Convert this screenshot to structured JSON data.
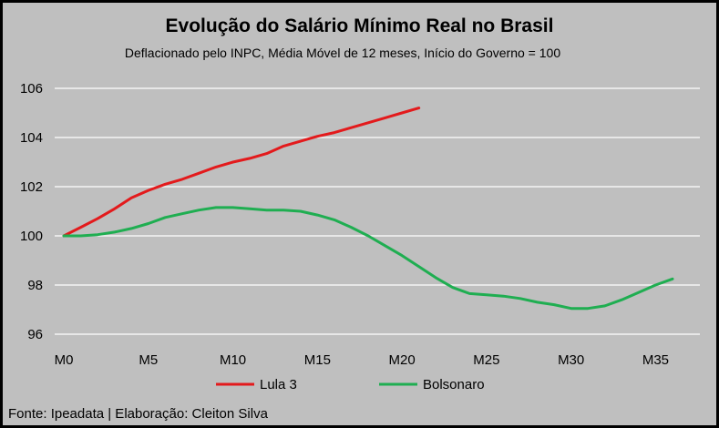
{
  "chart_data": {
    "type": "line",
    "title": "Evolução do Salário Mínimo Real no Brasil",
    "subtitle": "Deflacionado pelo INPC, Média Móvel de 12 meses, Início do Governo = 100",
    "source": "Fonte: Ipeadata | Elaboração: Cleiton Silva",
    "xlabel": "",
    "ylabel": "",
    "xlim": [
      0,
      36
    ],
    "ylim": [
      96,
      106
    ],
    "y_ticks": [
      96,
      98,
      100,
      102,
      104,
      106
    ],
    "x_ticks": [
      {
        "value": 0,
        "label": "M0"
      },
      {
        "value": 5,
        "label": "M5"
      },
      {
        "value": 10,
        "label": "M10"
      },
      {
        "value": 15,
        "label": "M15"
      },
      {
        "value": 20,
        "label": "M20"
      },
      {
        "value": 25,
        "label": "M25"
      },
      {
        "value": 30,
        "label": "M30"
      },
      {
        "value": 35,
        "label": "M35"
      }
    ],
    "grid": "horizontal",
    "legend_position": "bottom",
    "series": [
      {
        "name": "Lula 3",
        "color": "#e31a1c",
        "x": [
          0,
          1,
          2,
          3,
          4,
          5,
          6,
          7,
          8,
          9,
          10,
          11,
          12,
          13,
          14,
          15,
          16,
          17,
          18,
          19,
          20,
          21
        ],
        "values": [
          100.0,
          100.35,
          100.7,
          101.1,
          101.55,
          101.85,
          102.1,
          102.3,
          102.55,
          102.8,
          103.0,
          103.15,
          103.35,
          103.65,
          103.85,
          104.05,
          104.2,
          104.4,
          104.6,
          104.8,
          105.0,
          105.2
        ]
      },
      {
        "name": "Bolsonaro",
        "color": "#1fae51",
        "x": [
          0,
          1,
          2,
          3,
          4,
          5,
          6,
          7,
          8,
          9,
          10,
          11,
          12,
          13,
          14,
          15,
          16,
          17,
          18,
          19,
          20,
          21,
          22,
          23,
          24,
          25,
          26,
          27,
          28,
          29,
          30,
          31,
          32,
          33,
          34,
          35,
          36
        ],
        "values": [
          100.0,
          100.0,
          100.05,
          100.15,
          100.3,
          100.5,
          100.75,
          100.9,
          101.05,
          101.15,
          101.15,
          101.1,
          101.05,
          101.05,
          101.0,
          100.85,
          100.65,
          100.35,
          100.0,
          99.6,
          99.2,
          98.75,
          98.3,
          97.9,
          97.65,
          97.6,
          97.55,
          97.45,
          97.3,
          97.2,
          97.05,
          97.05,
          97.15,
          97.4,
          97.7,
          98.0,
          98.25
        ]
      }
    ]
  }
}
